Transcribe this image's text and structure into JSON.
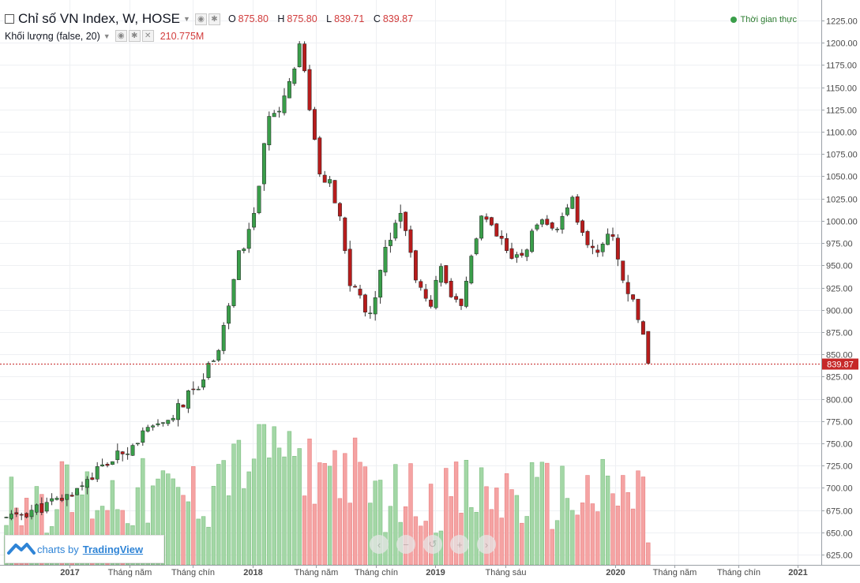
{
  "legend": {
    "title": "Chỉ số VN Index, W, HOSE",
    "o_label": "O",
    "o_value": "875.80",
    "h_label": "H",
    "h_value": "875.80",
    "l_label": "L",
    "l_value": "839.71",
    "c_label": "C",
    "c_value": "839.87",
    "volume_label": "Khối lượng (false, 20)",
    "volume_value": "210.775M"
  },
  "realtime_label": "Thời gian thực",
  "last_price_label": "839.87",
  "watermark": {
    "prefix": "charts by",
    "brand": "TradingView"
  },
  "nav_buttons": [
    "‹",
    "−",
    "↺",
    "+",
    "›"
  ],
  "colors": {
    "up": "#53b987",
    "down": "#eb4d5c",
    "up_body": "#3a9e4a",
    "down_body": "#b71c1c",
    "last_line": "#c62828"
  },
  "chart_data": {
    "type": "candlestick",
    "interval": "weekly",
    "y_axis": {
      "min": 625,
      "max": 1225,
      "step": 25,
      "side": "right"
    },
    "x_labels": [
      "2017",
      "Tháng năm",
      "Tháng chín",
      "2018",
      "Tháng năm",
      "Tháng chín",
      "2019",
      "Tháng sáu",
      "2020",
      "Tháng năm",
      "Tháng chín",
      "2021"
    ],
    "anchors": [
      [
        0,
        665
      ],
      [
        8,
        680
      ],
      [
        12,
        690
      ],
      [
        17,
        715
      ],
      [
        22,
        735
      ],
      [
        27,
        760
      ],
      [
        31,
        770
      ],
      [
        35,
        795
      ],
      [
        39,
        825
      ],
      [
        42,
        860
      ],
      [
        44,
        905
      ],
      [
        46,
        960
      ],
      [
        48,
        985
      ],
      [
        50,
        1040
      ],
      [
        52,
        1120
      ],
      [
        54,
        1130
      ],
      [
        56,
        1155
      ],
      [
        58,
        1200
      ],
      [
        60,
        1130
      ],
      [
        62,
        1050
      ],
      [
        64,
        1040
      ],
      [
        66,
        1000
      ],
      [
        68,
        930
      ],
      [
        70,
        915
      ],
      [
        72,
        890
      ],
      [
        74,
        950
      ],
      [
        76,
        985
      ],
      [
        78,
        1015
      ],
      [
        80,
        960
      ],
      [
        82,
        920
      ],
      [
        84,
        900
      ],
      [
        86,
        955
      ],
      [
        88,
        910
      ],
      [
        90,
        900
      ],
      [
        92,
        960
      ],
      [
        94,
        1005
      ],
      [
        96,
        990
      ],
      [
        98,
        975
      ],
      [
        100,
        955
      ],
      [
        102,
        960
      ],
      [
        104,
        985
      ],
      [
        106,
        995
      ],
      [
        108,
        990
      ],
      [
        110,
        1000
      ],
      [
        112,
        1020
      ],
      [
        114,
        985
      ],
      [
        116,
        965
      ],
      [
        118,
        975
      ],
      [
        120,
        985
      ],
      [
        122,
        935
      ],
      [
        124,
        905
      ],
      [
        126,
        875
      ],
      [
        127,
        840
      ]
    ],
    "last": {
      "open": 875.8,
      "high": 875.8,
      "low": 839.71,
      "close": 839.87,
      "volume": "210.775M"
    }
  }
}
